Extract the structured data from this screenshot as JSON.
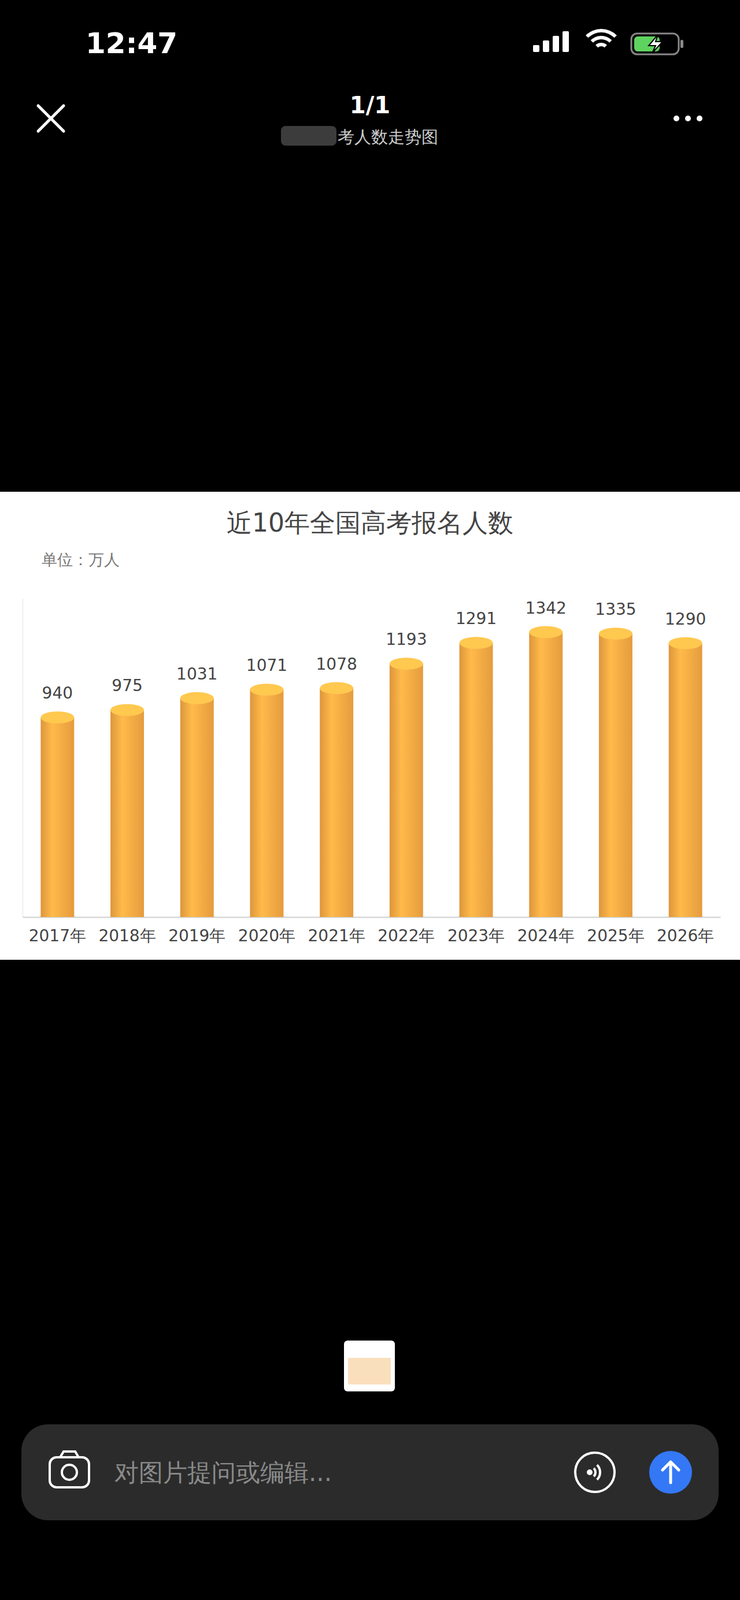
{
  "screen": {
    "time": "12:47",
    "page_indicator": "1/1",
    "header_title": "考人数走势图",
    "input_placeholder": "对图片提问或编辑..."
  },
  "chart_data": {
    "type": "bar",
    "title": "近10年全国高考报名人数",
    "subtitle": "单位：万人",
    "categories": [
      "2017年",
      "2018年",
      "2019年",
      "2020年",
      "2021年",
      "2022年",
      "2023年",
      "2024年",
      "2025年",
      "2026年"
    ],
    "values": [
      940,
      975,
      1031,
      1071,
      1078,
      1193,
      1291,
      1342,
      1335,
      1290
    ],
    "color": "#f2a441",
    "ylim": [
      0,
      1500
    ],
    "yticks": [],
    "data_labels": true,
    "tick_labels": "x",
    "grid": false
  }
}
